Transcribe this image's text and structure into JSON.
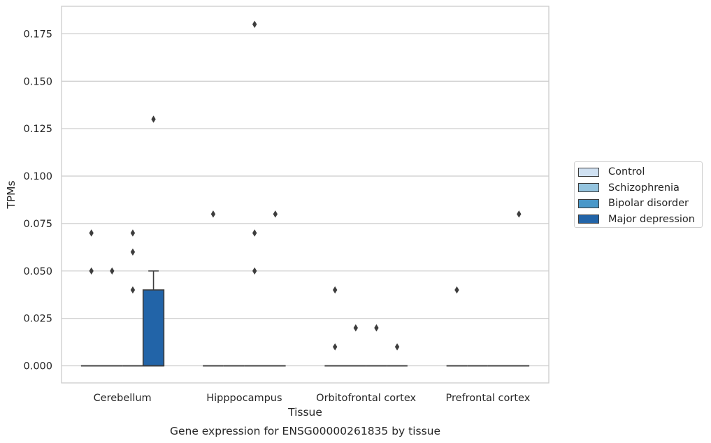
{
  "chart_data": {
    "type": "box",
    "title": "Gene expression for ENSG00000261835 by tissue",
    "xlabel": "Tissue",
    "ylabel": "TPMs",
    "ylim": [
      -0.009,
      0.1895
    ],
    "yticks": [
      "0.000",
      "0.025",
      "0.050",
      "0.075",
      "0.100",
      "0.125",
      "0.150",
      "0.175"
    ],
    "grid": "horizontal",
    "legend_placement": "right",
    "categories": [
      "Cerebellum",
      "Hipppocampus",
      "Orbitofrontal cortex",
      "Prefrontal cortex"
    ],
    "series": [
      {
        "name": "Control",
        "color": "#d0e1f2",
        "boxes": [
          {
            "q1": 0,
            "median": 0,
            "q3": 0,
            "whisker_low": 0,
            "whisker_high": 0,
            "outliers": [
              0.05,
              0.07
            ]
          },
          {
            "q1": 0,
            "median": 0,
            "q3": 0,
            "whisker_low": 0,
            "whisker_high": 0,
            "outliers": [
              0.08
            ]
          },
          {
            "q1": 0,
            "median": 0,
            "q3": 0,
            "whisker_low": 0,
            "whisker_high": 0,
            "outliers": [
              0.01,
              0.04
            ]
          },
          {
            "q1": 0,
            "median": 0,
            "q3": 0,
            "whisker_low": 0,
            "whisker_high": 0,
            "outliers": [
              0.04
            ]
          }
        ]
      },
      {
        "name": "Schizophrenia",
        "color": "#94c4df",
        "boxes": [
          {
            "q1": 0,
            "median": 0,
            "q3": 0,
            "whisker_low": 0,
            "whisker_high": 0,
            "outliers": [
              0.05
            ]
          },
          {
            "q1": 0,
            "median": 0,
            "q3": 0,
            "whisker_low": 0,
            "whisker_high": 0,
            "outliers": []
          },
          {
            "q1": 0,
            "median": 0,
            "q3": 0,
            "whisker_low": 0,
            "whisker_high": 0,
            "outliers": [
              0.02
            ]
          },
          {
            "q1": 0,
            "median": 0,
            "q3": 0,
            "whisker_low": 0,
            "whisker_high": 0,
            "outliers": []
          }
        ]
      },
      {
        "name": "Bipolar disorder",
        "color": "#4a98c9",
        "boxes": [
          {
            "q1": 0,
            "median": 0,
            "q3": 0,
            "whisker_low": 0,
            "whisker_high": 0,
            "outliers": [
              0.04,
              0.06,
              0.07
            ]
          },
          {
            "q1": 0,
            "median": 0,
            "q3": 0,
            "whisker_low": 0,
            "whisker_high": 0,
            "outliers": [
              0.05,
              0.07,
              0.18
            ]
          },
          {
            "q1": 0,
            "median": 0,
            "q3": 0,
            "whisker_low": 0,
            "whisker_high": 0,
            "outliers": [
              0.02
            ]
          },
          {
            "q1": 0,
            "median": 0,
            "q3": 0,
            "whisker_low": 0,
            "whisker_high": 0,
            "outliers": []
          }
        ]
      },
      {
        "name": "Major depression",
        "color": "#2264a8",
        "boxes": [
          {
            "q1": 0,
            "median": 0,
            "q3": 0.04,
            "whisker_low": 0,
            "whisker_high": 0.05,
            "outliers": [
              0.13
            ]
          },
          {
            "q1": 0,
            "median": 0,
            "q3": 0,
            "whisker_low": 0,
            "whisker_high": 0,
            "outliers": [
              0.08
            ]
          },
          {
            "q1": 0,
            "median": 0,
            "q3": 0,
            "whisker_low": 0,
            "whisker_high": 0,
            "outliers": [
              0.01
            ]
          },
          {
            "q1": 0,
            "median": 0,
            "q3": 0,
            "whisker_low": 0,
            "whisker_high": 0,
            "outliers": [
              0.08
            ]
          }
        ]
      }
    ]
  }
}
